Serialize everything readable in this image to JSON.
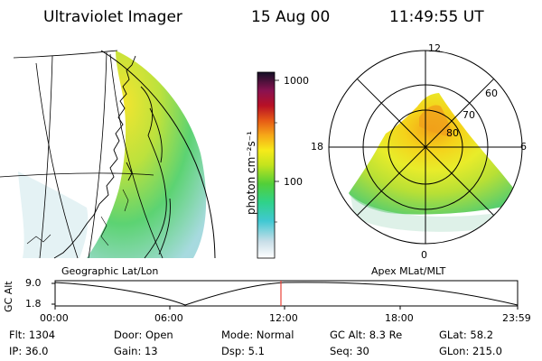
{
  "header": {
    "instrument": "Ultraviolet Imager",
    "date": "15 Aug 00",
    "time": "11:49:55 UT"
  },
  "colorbar": {
    "unit_label": "photon cm⁻²s⁻¹",
    "ticks": [
      "1000",
      "100"
    ]
  },
  "left_panel": {
    "caption": "Geographic Lat/Lon"
  },
  "right_panel": {
    "caption": "Apex MLat/MLT",
    "mlt_labels": {
      "top": "12",
      "right": "6",
      "bottom": "0",
      "left": "18"
    },
    "lat_labels": [
      "60",
      "70",
      "80"
    ]
  },
  "altitude_plot": {
    "axis_label": "GC Alt",
    "y_ticks": [
      "9.0",
      "1.8"
    ],
    "time_ticks": [
      "00:00",
      "06:00",
      "12:00",
      "18:00",
      "23:59"
    ],
    "current_time_marker": "11:49:55",
    "marker_color": "#e8423a"
  },
  "info": {
    "flt": "Flt: 1304",
    "ip": "IP: 36.0",
    "door": "Door: Open",
    "gain": "Gain: 13",
    "mode": "Mode: Normal",
    "dsp": "Dsp:  5.1",
    "gcalt": "GC Alt: 8.3 Re",
    "seq": "Seq: 30",
    "glat": "GLat:  58.2",
    "glon": "GLon: 215.0"
  }
}
